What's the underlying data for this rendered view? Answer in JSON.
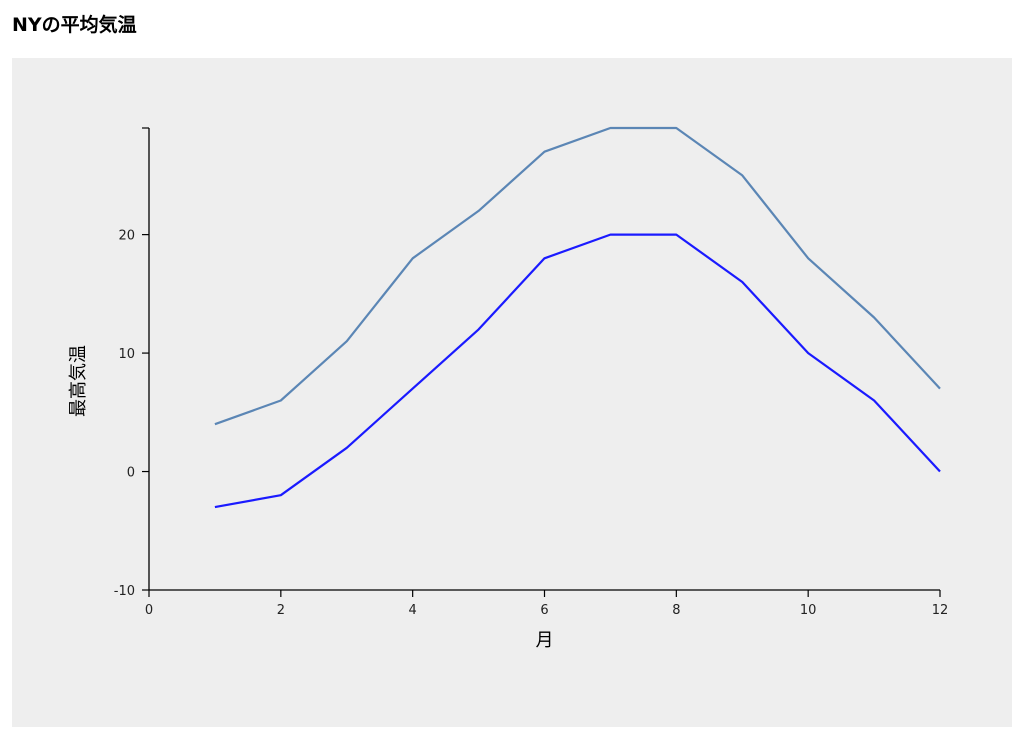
{
  "page": {
    "title": "NYの平均気温"
  },
  "chart_data": {
    "type": "line",
    "title": "NYの平均気温",
    "xlabel": "月",
    "ylabel": "最高気温",
    "xlim": [
      0,
      12
    ],
    "ylim": [
      -10,
      29
    ],
    "x_ticks": [
      0,
      2,
      4,
      6,
      8,
      10,
      12
    ],
    "y_ticks": [
      -10,
      0,
      10,
      20
    ],
    "grid": false,
    "x": [
      1,
      2,
      3,
      4,
      5,
      6,
      7,
      8,
      9,
      10,
      11,
      12
    ],
    "series": [
      {
        "values": [
          4,
          6,
          11,
          18,
          22,
          27,
          29,
          29,
          25,
          18,
          13,
          7
        ],
        "color": "#5b86b5"
      },
      {
        "values": [
          -3,
          -2,
          2,
          7,
          12,
          18,
          20,
          20,
          16,
          10,
          6,
          0
        ],
        "color": "#1a1aff"
      }
    ]
  }
}
